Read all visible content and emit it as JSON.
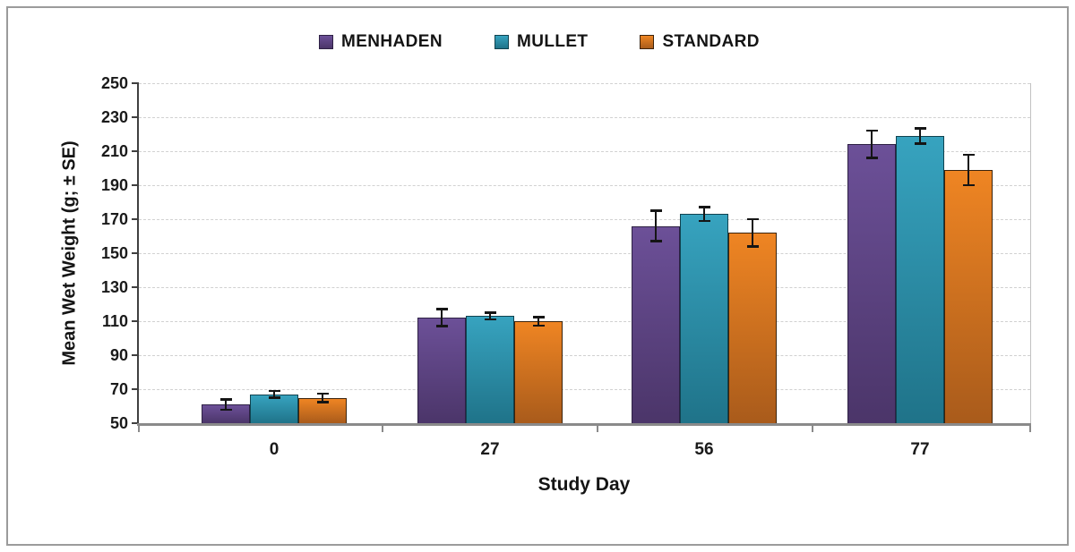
{
  "chart_data": {
    "type": "bar",
    "title": "",
    "categories": [
      "0",
      "27",
      "56",
      "77"
    ],
    "series": [
      {
        "name": "MENHADEN",
        "values": [
          61,
          112,
          166,
          214
        ],
        "se": [
          3,
          5,
          9,
          8
        ],
        "color_top": "#6C5098",
        "color_bottom": "#4B3569",
        "border_color": "#2E2144"
      },
      {
        "name": "MULLET",
        "values": [
          67,
          113,
          173,
          219
        ],
        "se": [
          2,
          2,
          4,
          4.5
        ],
        "color_top": "#37A3BF",
        "color_bottom": "#1F7389",
        "border_color": "#10424F"
      },
      {
        "name": "STANDARD",
        "values": [
          65,
          110,
          162,
          199
        ],
        "se": [
          2.5,
          2.5,
          8,
          9
        ],
        "color_top": "#EF8523",
        "color_bottom": "#A95B1B",
        "border_color": "#3B230C"
      }
    ],
    "xlabel": "Study Day",
    "ylabel": "Mean Wet Weight (g; ± SE)",
    "ylim": [
      50,
      250
    ],
    "ytick_step": 20,
    "yticks": [
      50,
      70,
      90,
      110,
      130,
      150,
      170,
      190,
      210,
      230,
      250
    ],
    "grid": "horizontal-dashed",
    "legend_position": "top",
    "error_bar_color": "#151515",
    "gridline_color": "#D1D1D1",
    "axis_color": "#404040",
    "frame_border_color": "#9B9B9B"
  }
}
